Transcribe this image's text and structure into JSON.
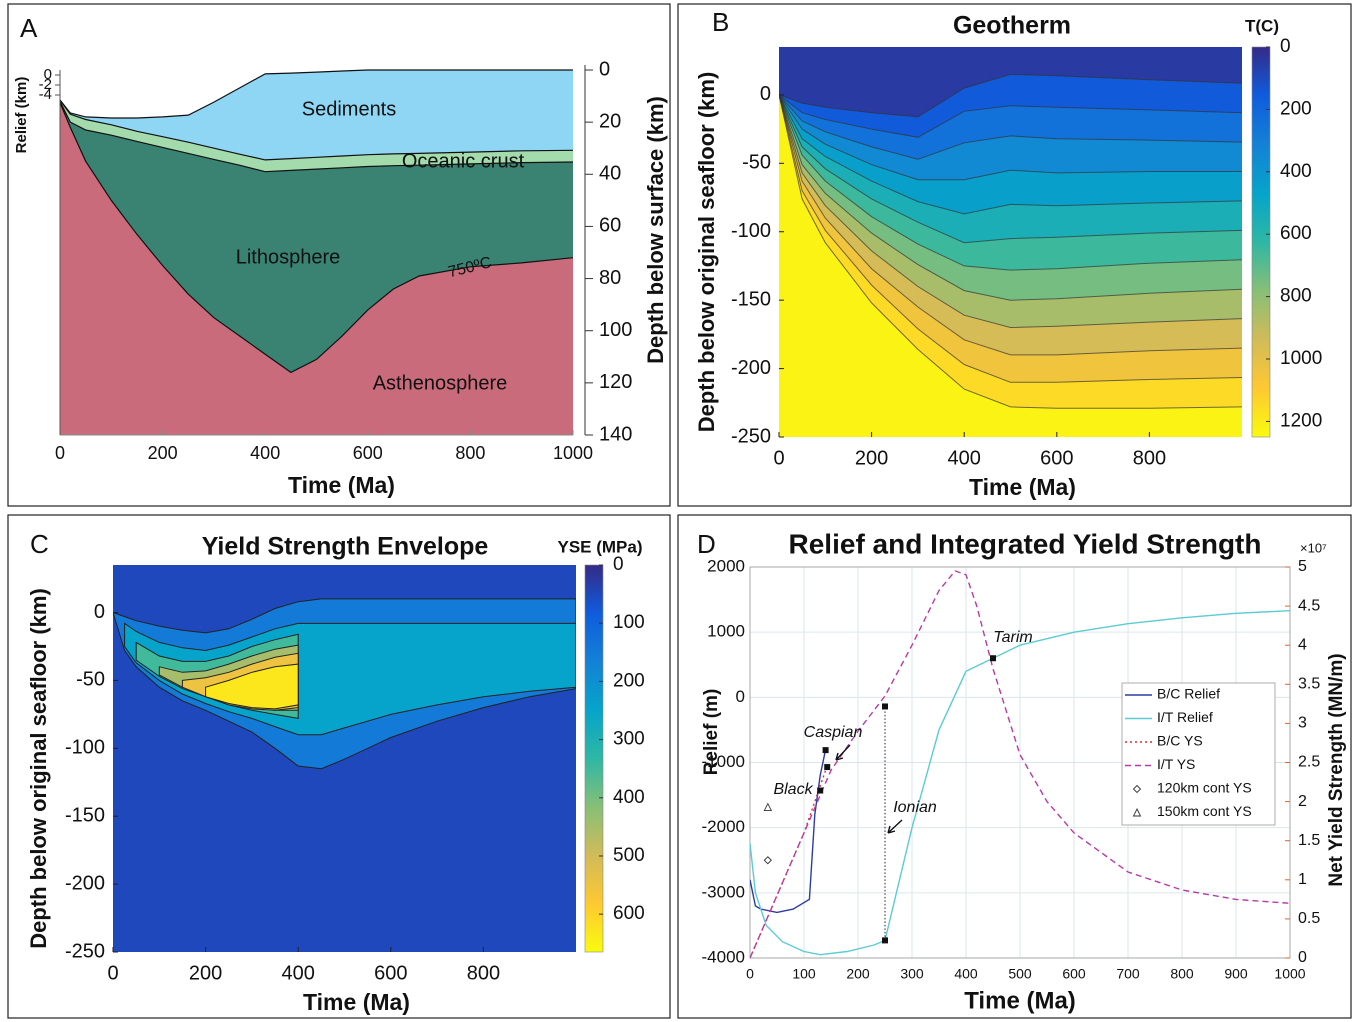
{
  "chart_data": [
    {
      "type": "area",
      "panel": "A",
      "x": [
        0,
        20,
        50,
        100,
        150,
        200,
        250,
        300,
        350,
        400,
        450,
        500,
        550,
        600,
        650,
        700,
        800,
        900,
        1000
      ],
      "series": [
        {
          "name": "Sediments",
          "color": "#8fd6f4",
          "values": [
            11.5,
            16.5,
            18,
            18.4,
            18.4,
            18,
            17.3,
            12.3,
            6.9,
            1.5,
            1.2,
            0.8,
            0.4,
            0,
            0,
            0,
            0,
            0,
            0
          ]
        },
        {
          "name": "Oceanic crust",
          "color": "#a3dbad",
          "values": [
            11.5,
            17,
            19,
            21,
            23.5,
            25.6,
            27.7,
            30,
            32.3,
            34.5,
            34,
            33.5,
            33,
            32.5,
            32.2,
            32,
            31.5,
            31,
            30.8
          ]
        },
        {
          "name": "Lithosphere",
          "color": "#3a8272",
          "values": [
            12,
            20,
            23,
            25,
            27.4,
            29.7,
            32,
            34.3,
            36.5,
            39,
            38.5,
            38,
            37.5,
            37,
            36.7,
            36.5,
            36,
            35.5,
            35.3
          ]
        },
        {
          "name": "Asthenosphere",
          "color": "#ca6b7b",
          "values": [
            12.5,
            22,
            35,
            50,
            63,
            75,
            86,
            95,
            102,
            109,
            116,
            111,
            102,
            92,
            84,
            79,
            75.5,
            74,
            72
          ]
        }
      ],
      "annotation": "750ºC",
      "xlabel": "Time (Ma)",
      "ylabel": "Depth below surface (km)",
      "y2label": "Relief (km)",
      "xlim": [
        0,
        1000
      ],
      "xticks": [
        0,
        200,
        400,
        600,
        800,
        1000
      ],
      "ylim": [
        0,
        140
      ],
      "y_reversed": true,
      "yticks": [
        0,
        20,
        40,
        60,
        80,
        100,
        120,
        140
      ],
      "y2lim": [
        -72,
        1
      ],
      "y2ticks": [
        0,
        -2,
        -4
      ]
    },
    {
      "type": "contour",
      "panel": "B",
      "title": "Geotherm",
      "colorbar_label": "T(C)",
      "xlabel": "Time (Ma)",
      "ylabel": "Depth below original seafloor (km)",
      "x": [
        0,
        50,
        100,
        200,
        300,
        400,
        500,
        600,
        800,
        1000
      ],
      "levels": [
        {
          "level": 100,
          "values": [
            0,
            -6,
            -9,
            -13,
            -16,
            5,
            15,
            14,
            11,
            8.5
          ]
        },
        {
          "level": 200,
          "values": [
            0,
            -13,
            -18,
            -25,
            -31,
            -12,
            -8,
            -9,
            -11,
            -13
          ]
        },
        {
          "level": 300,
          "values": [
            0,
            -19,
            -27,
            -38,
            -47,
            -35,
            -30,
            -32,
            -33,
            -34.5
          ]
        },
        {
          "level": 400,
          "values": [
            0,
            -25,
            -36,
            -51,
            -62,
            -62,
            -55,
            -57,
            -56,
            -56
          ]
        },
        {
          "level": 500,
          "values": [
            0,
            -32,
            -45,
            -63,
            -78,
            -87,
            -80,
            -81,
            -79,
            -77.5
          ]
        },
        {
          "level": 600,
          "values": [
            0,
            -38,
            -54,
            -76,
            -93,
            -108,
            -105,
            -104,
            -101,
            -99
          ]
        },
        {
          "level": 700,
          "values": [
            0,
            -44,
            -63,
            -89,
            -109,
            -125,
            -128,
            -127,
            -123,
            -120.5
          ]
        },
        {
          "level": 800,
          "values": [
            0,
            -51,
            -72,
            -101,
            -124,
            -143,
            -150,
            -149,
            -145,
            -142
          ]
        },
        {
          "level": 900,
          "values": [
            0,
            -57,
            -81,
            -114,
            -140,
            -161,
            -170,
            -169,
            -166,
            -163.5
          ]
        },
        {
          "level": 1000,
          "values": [
            0,
            -63,
            -90,
            -127,
            -155,
            -179,
            -190,
            -190,
            -187,
            -185
          ]
        },
        {
          "level": 1100,
          "values": [
            0,
            -70,
            -99,
            -139,
            -171,
            -197,
            -210,
            -210,
            -208,
            -206.5
          ]
        },
        {
          "level": 1200,
          "values": [
            0,
            -76,
            -108,
            -152,
            -186,
            -215,
            -228,
            -229,
            -229,
            -228
          ]
        }
      ],
      "colormap": [
        "#352a87",
        "#0f5cdd",
        "#1481d6",
        "#06a4ca",
        "#2eb7a4",
        "#87bf77",
        "#d1bb59",
        "#fec832",
        "#f9fb0e"
      ],
      "clim": [
        0,
        1250
      ],
      "cticks": [
        0,
        200,
        400,
        600,
        800,
        1000,
        1200
      ],
      "xlim": [
        0,
        1000
      ],
      "xticks": [
        0,
        200,
        400,
        600,
        800
      ],
      "ylim": [
        -250,
        35
      ],
      "yticks": [
        -250,
        -200,
        -150,
        -100,
        -50,
        0
      ]
    },
    {
      "type": "band",
      "panel": "C",
      "title": "Yield Strength Envelope",
      "colorbar_label": "YSE (MPa)",
      "xlabel": "Time (Ma)",
      "ylabel": "Depth below original seafloor (km)",
      "x": [
        0,
        25,
        50,
        100,
        150,
        200,
        250,
        300,
        350,
        400,
        450,
        500,
        600,
        700,
        800,
        900,
        1000
      ],
      "levels": [
        {
          "level": 100,
          "upper": [
            0,
            -3,
            -6,
            -10,
            -13,
            -15,
            -12,
            -5,
            3,
            8,
            10,
            10,
            10,
            10,
            10,
            10,
            10
          ],
          "lower": [
            0,
            -28,
            -40,
            -55,
            -65,
            -72,
            -80,
            -88,
            -100,
            -113,
            -115,
            -108,
            -92,
            -80,
            -70,
            -62,
            -56
          ]
        },
        {
          "level": 200,
          "upper": [
            null,
            -8,
            -14,
            -22,
            -26,
            -28,
            -24,
            -18,
            -12,
            -8,
            -8,
            -8,
            -8,
            -8,
            -8,
            -8,
            -8
          ],
          "lower": [
            null,
            -25,
            -37,
            -50,
            -60,
            -67,
            -73,
            -78,
            -84,
            -90,
            -90,
            -85,
            -75,
            -68,
            -62,
            -58,
            -55
          ]
        },
        {
          "level": 300,
          "upper": [
            null,
            null,
            -22,
            -32,
            -36,
            -36,
            -32,
            -25,
            -20,
            -16,
            null,
            null,
            null,
            null,
            null,
            null,
            null
          ],
          "lower": [
            null,
            null,
            -35,
            -47,
            -56,
            -62,
            -68,
            -72,
            -75,
            -78,
            null,
            null,
            null,
            null,
            null,
            null,
            null
          ]
        },
        {
          "level": 400,
          "upper": [
            null,
            null,
            null,
            -40,
            -44,
            -43,
            -38,
            -32,
            -27,
            -24,
            null,
            null,
            null,
            null,
            null,
            null,
            null
          ],
          "lower": [
            null,
            null,
            null,
            -46,
            -55,
            -61,
            -66,
            -70,
            -72,
            -72,
            null,
            null,
            null,
            null,
            null,
            null,
            null
          ]
        },
        {
          "level": 500,
          "upper": [
            null,
            null,
            null,
            null,
            -50,
            -48,
            -44,
            -38,
            -33,
            -30,
            null,
            null,
            null,
            null,
            null,
            null,
            null
          ],
          "lower": [
            null,
            null,
            null,
            null,
            -55,
            -62,
            -68,
            -71,
            -72,
            -70,
            null,
            null,
            null,
            null,
            null,
            null,
            null
          ]
        },
        {
          "level": 600,
          "upper": [
            null,
            null,
            null,
            null,
            null,
            -55,
            -50,
            -44,
            -40,
            -38,
            null,
            null,
            null,
            null,
            null,
            null,
            null
          ],
          "lower": [
            null,
            null,
            null,
            null,
            null,
            -62,
            -67,
            -70,
            -71,
            -68,
            null,
            null,
            null,
            null,
            null,
            null,
            null
          ]
        }
      ],
      "colormap": [
        "#352a87",
        "#0f5cdd",
        "#1481d6",
        "#06a4ca",
        "#2eb7a4",
        "#87bf77",
        "#d1bb59",
        "#fec832",
        "#f9fb0e"
      ],
      "clim": [
        0,
        665
      ],
      "cticks": [
        0,
        100,
        200,
        300,
        400,
        500,
        600
      ],
      "xlim": [
        0,
        1000
      ],
      "xticks": [
        0,
        200,
        400,
        600,
        800
      ],
      "ylim": [
        -250,
        35
      ],
      "yticks": [
        -250,
        -200,
        -150,
        -100,
        -50,
        0
      ]
    },
    {
      "type": "line",
      "panel": "D",
      "title": "Relief and Integrated Yield Strength",
      "xlabel": "Time (Ma)",
      "ylabel": "Relief (m)",
      "y2label": "Net Yield Strength (MN/m)",
      "y2_scale": "×10⁷",
      "series": [
        {
          "name": "B/C Relief",
          "color": "#2b3da0",
          "dash": "solid",
          "x": [
            0,
            10,
            20,
            50,
            80,
            110,
            120,
            130,
            140
          ],
          "values": [
            -2800,
            -3200,
            -3250,
            -3300,
            -3250,
            -3100,
            -1800,
            -1200,
            -800
          ]
        },
        {
          "name": "I/T Relief",
          "color": "#5ccbd3",
          "dash": "solid",
          "x": [
            0,
            10,
            30,
            60,
            100,
            130,
            180,
            230,
            250,
            300,
            350,
            400,
            450,
            500,
            600,
            700,
            800,
            900,
            1000
          ],
          "values": [
            -2240,
            -3000,
            -3500,
            -3750,
            -3900,
            -3950,
            -3900,
            -3800,
            -3730,
            -2000,
            -500,
            400,
            600,
            800,
            1000,
            1130,
            1220,
            1290,
            1330
          ]
        },
        {
          "name": "B/C YS",
          "color": "#d62f3a",
          "dash": "dotted",
          "axis": "y2",
          "x": [
            0,
            50,
            100,
            140
          ],
          "values": [
            0,
            0.8,
            1.6,
            2.4
          ]
        },
        {
          "name": "I/T YS",
          "color": "#b83aa5",
          "dash": "dashed",
          "axis": "y2",
          "x": [
            0,
            50,
            100,
            150,
            200,
            250,
            300,
            350,
            380,
            400,
            420,
            450,
            500,
            550,
            600,
            700,
            800,
            900,
            1000
          ],
          "values": [
            0,
            0.8,
            1.6,
            2.4,
            2.9,
            3.35,
            4.0,
            4.7,
            4.95,
            4.9,
            4.5,
            3.7,
            2.6,
            2.0,
            1.6,
            1.1,
            0.87,
            0.75,
            0.7
          ]
        },
        {
          "name": "120km cont YS",
          "color": "#333333",
          "marker": "diamond",
          "axis": "y2",
          "x": [
            33
          ],
          "values": [
            1.25
          ]
        },
        {
          "name": "150km cont YS",
          "color": "#333333",
          "marker": "triangle",
          "axis": "y2",
          "x": [
            33
          ],
          "values": [
            1.93
          ]
        }
      ],
      "annotations": [
        {
          "text": "Black",
          "points": [
            [
              130,
              -1430
            ]
          ]
        },
        {
          "text": "Caspian",
          "points": [
            [
              140,
              -810
            ],
            [
              143,
              -1070
            ]
          ]
        },
        {
          "text": "Ionian",
          "points": [
            [
              250,
              -3730
            ],
            [
              250,
              -140
            ]
          ]
        },
        {
          "text": "Tarim",
          "points": [
            [
              450,
              600
            ]
          ]
        }
      ],
      "legend": "right",
      "grid": true,
      "xlim": [
        0,
        1000
      ],
      "xticks": [
        0,
        100,
        200,
        300,
        400,
        500,
        600,
        700,
        800,
        900,
        1000
      ],
      "ylim": [
        -4000,
        2000
      ],
      "yticks": [
        -4000,
        -3000,
        -2000,
        -1000,
        0,
        1000,
        2000
      ],
      "y2lim": [
        0,
        5
      ],
      "y2ticks": [
        0,
        0.5,
        1,
        1.5,
        2,
        2.5,
        3,
        3.5,
        4,
        4.5,
        5
      ]
    }
  ]
}
